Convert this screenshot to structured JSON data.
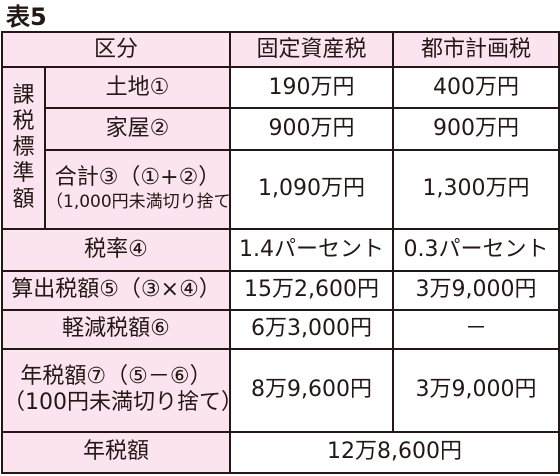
{
  "title": "表5",
  "header": {
    "category": "区分",
    "col1": "固定資産税",
    "col2": "都市計画税"
  },
  "group_label": [
    "課",
    "税",
    "標",
    "準",
    "額"
  ],
  "rows": {
    "land": {
      "label": "土地①",
      "v1": "190万円",
      "v2": "400万円"
    },
    "house": {
      "label": "家屋②",
      "v1": "900万円",
      "v2": "900万円"
    },
    "total": {
      "label": "合計③（①+②）",
      "note": "（1,000円未満切り捨て）",
      "v1": "1,090万円",
      "v2": "1,300万円"
    },
    "rate": {
      "label": "税率④",
      "v1": "1.4パーセント",
      "v2": "0.3パーセント"
    },
    "computed": {
      "label": "算出税額⑤（③×④）",
      "v1": "15万2,600円",
      "v2": "3万9,000円"
    },
    "reduced": {
      "label": "軽減税額⑥",
      "v1": "6万3,000円",
      "v2": "－"
    },
    "annual": {
      "label": "年税額⑦（⑤－⑥）",
      "note": "（100円未満切り捨て）",
      "v1": "8万9,600円",
      "v2": "3万9,000円"
    },
    "annual_total": {
      "label": "年税額",
      "value": "12万8,600円"
    }
  }
}
